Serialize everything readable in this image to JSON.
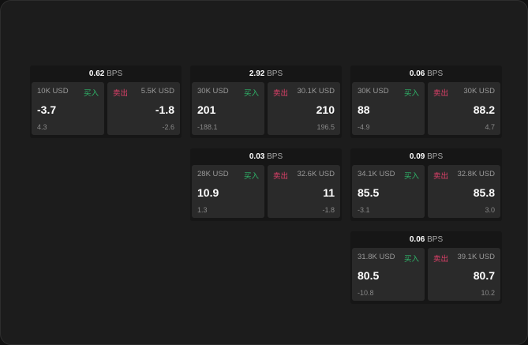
{
  "bps_unit": "BPS",
  "buy_label": "买入",
  "sell_label": "卖出",
  "colors": {
    "buy": "#2fb66a",
    "sell": "#e0406a",
    "background": "#1c1c1c"
  },
  "cards": [
    {
      "spread": "0.62",
      "buy": {
        "size": "10K USD",
        "price": "-3.7",
        "change": "4.3"
      },
      "sell": {
        "size": "5.5K USD",
        "price": "-1.8",
        "change": "-2.6"
      }
    },
    {
      "spread": "2.92",
      "buy": {
        "size": "30K USD",
        "price": "201",
        "change": "-188.1"
      },
      "sell": {
        "size": "30.1K USD",
        "price": "210",
        "change": "196.5"
      }
    },
    {
      "spread": "0.06",
      "buy": {
        "size": "30K USD",
        "price": "88",
        "change": "-4.9"
      },
      "sell": {
        "size": "30K USD",
        "price": "88.2",
        "change": "4.7"
      }
    },
    {
      "spread": "0.03",
      "buy": {
        "size": "28K USD",
        "price": "10.9",
        "change": "1.3"
      },
      "sell": {
        "size": "32.6K USD",
        "price": "11",
        "change": "-1.8"
      }
    },
    {
      "spread": "0.09",
      "buy": {
        "size": "34.1K USD",
        "price": "85.5",
        "change": "-3.1"
      },
      "sell": {
        "size": "32.8K USD",
        "price": "85.8",
        "change": "3.0"
      }
    },
    {
      "spread": "0.06",
      "buy": {
        "size": "31.8K USD",
        "price": "80.5",
        "change": "-10.8"
      },
      "sell": {
        "size": "39.1K USD",
        "price": "80.7",
        "change": "10.2"
      }
    }
  ]
}
